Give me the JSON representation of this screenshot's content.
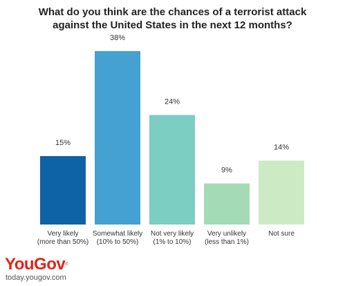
{
  "chart_data": {
    "type": "bar",
    "title": "What do you think are the chances of a terrorist attack against the United States in the next 12 months?",
    "title_lines": [
      "What do you think are the chances of a terrorist attack",
      "against the United States in the next 12 months?"
    ],
    "categories": [
      [
        "Very likely",
        "(more than 50%)"
      ],
      [
        "Somewhat likely",
        "(10% to 50%)"
      ],
      [
        "Not very likely",
        "(1% to 10%)"
      ],
      [
        "Very unlikely",
        "(less than 1%)"
      ],
      [
        "Not sure"
      ]
    ],
    "values": [
      15,
      38,
      24,
      9,
      14
    ],
    "value_labels": [
      "15%",
      "38%",
      "24%",
      "9%",
      "14%"
    ],
    "colors": [
      "#0e63a6",
      "#44a1d1",
      "#7ccdc2",
      "#a4dbb7",
      "#ccebc5"
    ],
    "ylim": [
      0,
      38
    ],
    "grid": false,
    "legend": "none"
  },
  "branding": {
    "logo_text": "YouGov",
    "logo_mark": "®",
    "url": "today.yougov.com"
  }
}
